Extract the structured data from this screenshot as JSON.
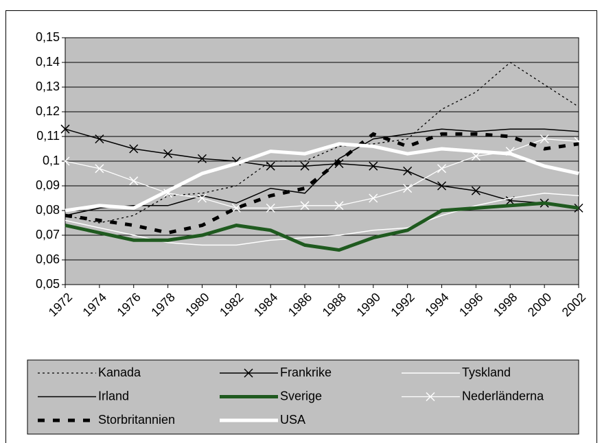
{
  "chart_data": {
    "type": "line",
    "categories": [
      "1972",
      "1974",
      "1976",
      "1978",
      "1980",
      "1982",
      "1984",
      "1986",
      "1988",
      "1990",
      "1992",
      "1994",
      "1996",
      "1998",
      "2000",
      "2002"
    ],
    "ylim": [
      0.05,
      0.15
    ],
    "yticks": [
      {
        "value": 0.05,
        "label": "0,05"
      },
      {
        "value": 0.06,
        "label": "0,06"
      },
      {
        "value": 0.07,
        "label": "0,07"
      },
      {
        "value": 0.08,
        "label": "0,08"
      },
      {
        "value": 0.09,
        "label": "0,09"
      },
      {
        "value": 0.1,
        "label": "0,1"
      },
      {
        "value": 0.11,
        "label": "0,11"
      },
      {
        "value": 0.12,
        "label": "0,12"
      },
      {
        "value": 0.13,
        "label": "0,13"
      },
      {
        "value": 0.14,
        "label": "0,14"
      },
      {
        "value": 0.15,
        "label": "0,15"
      }
    ],
    "grid": true,
    "series": [
      {
        "name": "Kanada",
        "color": "#000000",
        "width": 1.3,
        "dash": "3,4",
        "values": [
          0.078,
          0.075,
          0.078,
          0.086,
          0.087,
          0.09,
          0.1,
          0.1,
          0.106,
          0.107,
          0.109,
          0.121,
          0.128,
          0.14,
          0.131,
          0.122
        ]
      },
      {
        "name": "Frankrike",
        "color": "#000000",
        "width": 1.5,
        "marker": "x",
        "values": [
          0.113,
          0.109,
          0.105,
          0.103,
          0.101,
          0.1,
          0.098,
          0.098,
          0.099,
          0.098,
          0.096,
          0.09,
          0.088,
          0.084,
          0.083,
          0.081
        ]
      },
      {
        "name": "Tyskland",
        "color": "#ffffff",
        "width": 1.5,
        "values": [
          0.076,
          0.073,
          0.07,
          0.067,
          0.066,
          0.066,
          0.068,
          0.069,
          0.07,
          0.072,
          0.073,
          0.078,
          0.082,
          0.085,
          0.087,
          0.086
        ]
      },
      {
        "name": "Irland",
        "color": "#000000",
        "width": 1.5,
        "values": [
          0.078,
          0.081,
          0.082,
          0.082,
          0.086,
          0.083,
          0.089,
          0.087,
          0.101,
          0.109,
          0.111,
          0.113,
          0.112,
          0.113,
          0.113,
          0.112
        ]
      },
      {
        "name": "Sverige",
        "color": "#1f5a1f",
        "width": 5,
        "values": [
          0.074,
          0.071,
          0.068,
          0.068,
          0.07,
          0.074,
          0.072,
          0.066,
          0.064,
          0.069,
          0.072,
          0.08,
          0.081,
          0.082,
          0.083,
          0.081
        ]
      },
      {
        "name": "Nederländerna",
        "color": "#ffffff",
        "width": 1.3,
        "marker": "x",
        "values": [
          0.1,
          0.097,
          0.092,
          0.087,
          0.085,
          0.081,
          0.081,
          0.082,
          0.082,
          0.085,
          0.089,
          0.097,
          0.102,
          0.104,
          0.109,
          0.108
        ]
      },
      {
        "name": "Storbritannien",
        "color": "#000000",
        "width": 5,
        "dash": "10,12",
        "values": [
          0.078,
          0.076,
          0.074,
          0.071,
          0.074,
          0.081,
          0.086,
          0.089,
          0.1,
          0.111,
          0.106,
          0.111,
          0.111,
          0.11,
          0.105,
          0.107
        ]
      },
      {
        "name": "USA",
        "color": "#ffffff",
        "width": 5,
        "values": [
          0.08,
          0.082,
          0.081,
          0.088,
          0.095,
          0.099,
          0.104,
          0.103,
          0.107,
          0.106,
          0.103,
          0.105,
          0.104,
          0.103,
          0.098,
          0.095
        ]
      }
    ]
  }
}
